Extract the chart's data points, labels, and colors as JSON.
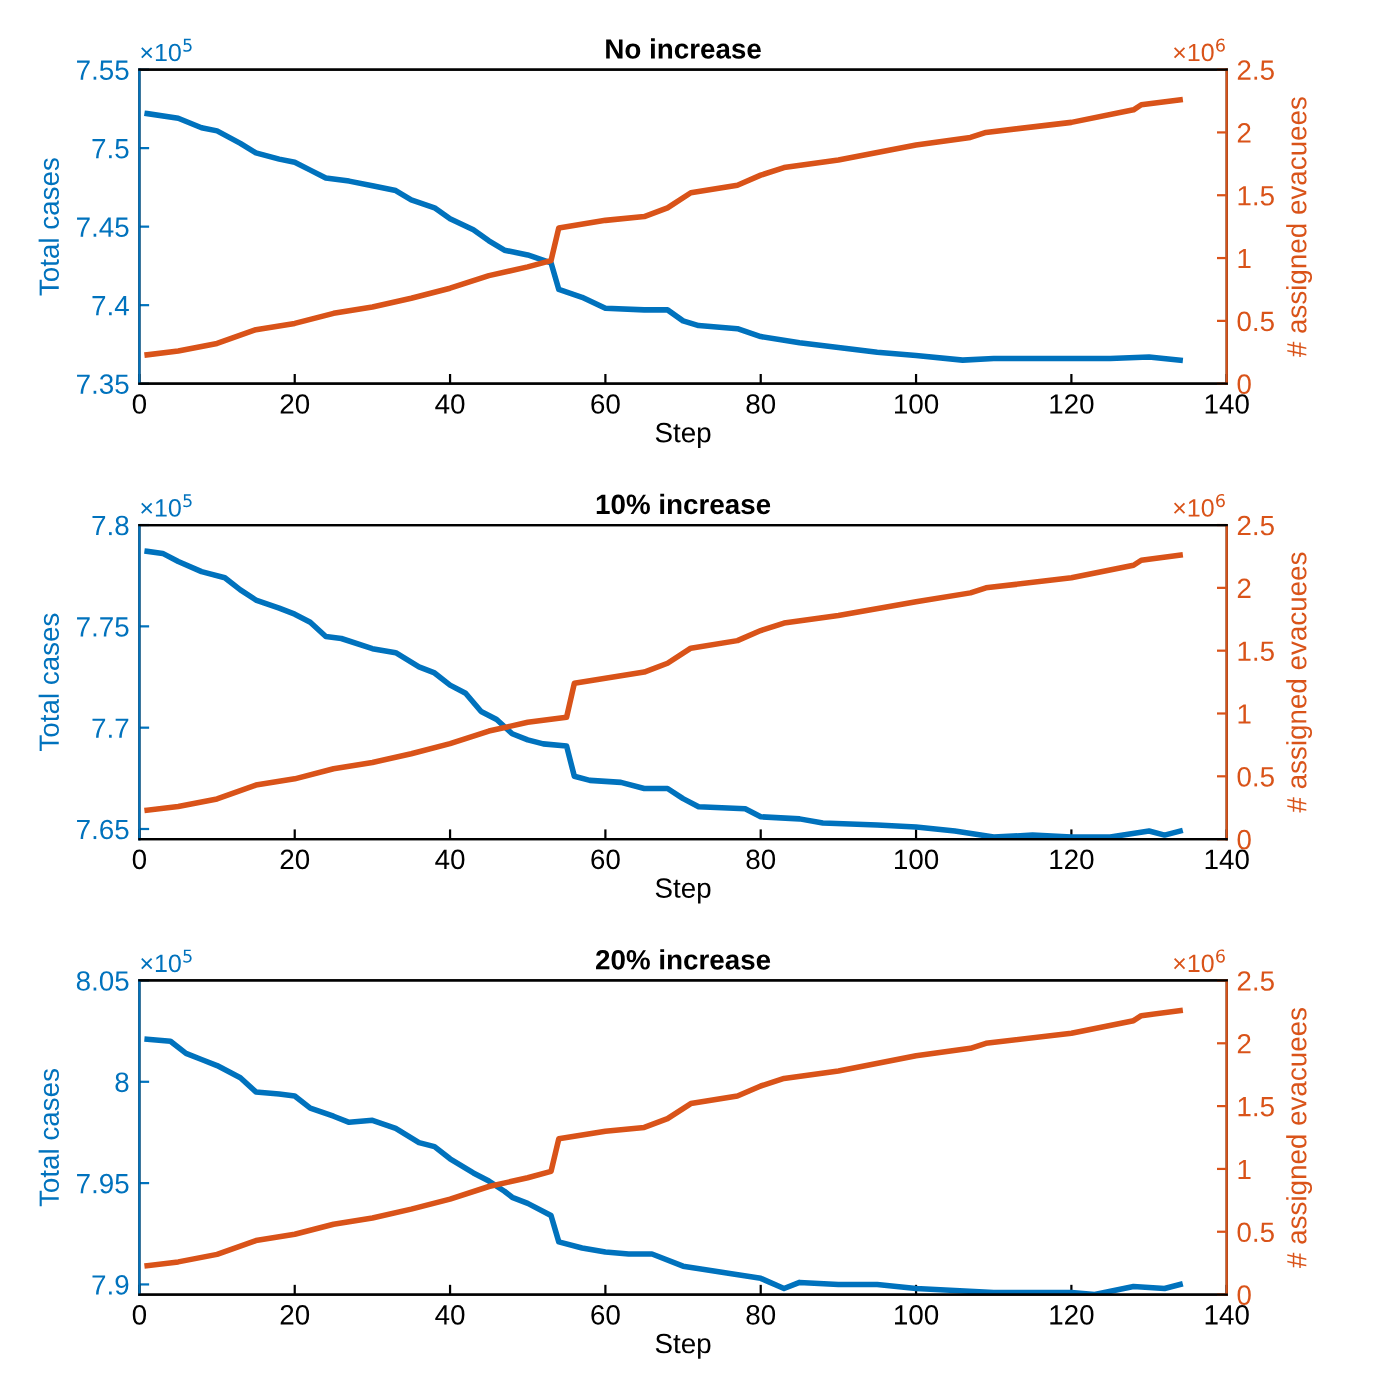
{
  "chart_data": [
    {
      "type": "line",
      "title": "No increase",
      "xlabel": "Step",
      "ylabel": "Total cases",
      "y2label": "# assigned evacuees",
      "annotations": [
        "×10$^{5}$",
        "×10$^{6}$"
      ],
      "xlim": [
        0,
        140
      ],
      "xticks": [
        0,
        20,
        40,
        60,
        80,
        100,
        120,
        140
      ],
      "ylim": [
        7.35,
        7.55
      ],
      "yticks": [
        7.35,
        7.4,
        7.45,
        7.5,
        7.55
      ],
      "y2lim": [
        0,
        2.5
      ],
      "y2ticks": [
        0,
        0.5,
        1,
        1.5,
        2,
        2.5
      ],
      "grid": false,
      "legend": false,
      "marker": "none",
      "line_style": "solid",
      "series": [
        {
          "color": "#0072bd",
          "x": [
            1,
            5,
            8,
            10,
            13,
            15,
            18,
            20,
            22,
            24,
            27,
            30,
            33,
            35,
            38,
            40,
            43,
            45,
            47,
            50,
            53,
            54,
            57,
            60,
            65,
            68,
            70,
            72,
            77,
            80,
            85,
            90,
            95,
            100,
            106,
            110,
            115,
            120,
            125,
            130,
            134
          ],
          "values": [
            7.522,
            7.519,
            7.513,
            7.511,
            7.503,
            7.497,
            7.493,
            7.491,
            7.486,
            7.481,
            7.479,
            7.476,
            7.473,
            7.467,
            7.462,
            7.455,
            7.448,
            7.441,
            7.435,
            7.432,
            7.427,
            7.41,
            7.405,
            7.398,
            7.397,
            7.397,
            7.39,
            7.387,
            7.385,
            7.38,
            7.376,
            7.373,
            7.37,
            7.368,
            7.365,
            7.366,
            7.366,
            7.366,
            7.366,
            7.367,
            7.365
          ]
        },
        {
          "color": "#d95319",
          "axis": "y2",
          "x": [
            1,
            5,
            10,
            15,
            20,
            25,
            30,
            35,
            40,
            45,
            50,
            53,
            54,
            60,
            65,
            68,
            71,
            77,
            80,
            83,
            90,
            100,
            107,
            109,
            120,
            128,
            129,
            134
          ],
          "values": [
            0.23,
            0.26,
            0.32,
            0.43,
            0.48,
            0.56,
            0.61,
            0.68,
            0.76,
            0.86,
            0.93,
            0.98,
            1.24,
            1.3,
            1.33,
            1.4,
            1.52,
            1.58,
            1.66,
            1.72,
            1.78,
            1.9,
            1.96,
            2.0,
            2.08,
            2.18,
            2.22,
            2.26
          ]
        }
      ]
    },
    {
      "type": "line",
      "title": "10% increase",
      "xlabel": "Step",
      "ylabel": "Total cases",
      "y2label": "# assigned evacuees",
      "annotations": [
        "×10$^{5}$",
        "×10$^{6}$"
      ],
      "xlim": [
        0,
        140
      ],
      "xticks": [
        0,
        20,
        40,
        60,
        80,
        100,
        120,
        140
      ],
      "ylim": [
        7.645,
        7.8
      ],
      "yticks": [
        7.65,
        7.7,
        7.75,
        7.8
      ],
      "y2lim": [
        0,
        2.5
      ],
      "y2ticks": [
        0,
        0.5,
        1,
        1.5,
        2,
        2.5
      ],
      "grid": false,
      "legend": false,
      "marker": "none",
      "line_style": "solid",
      "series": [
        {
          "color": "#0072bd",
          "x": [
            1,
            3,
            5,
            8,
            11,
            13,
            15,
            18,
            20,
            22,
            24,
            26,
            30,
            33,
            36,
            38,
            40,
            42,
            44,
            46,
            48,
            50,
            52,
            55,
            56,
            58,
            62,
            65,
            68,
            70,
            72,
            78,
            80,
            85,
            88,
            95,
            100,
            105,
            110,
            115,
            120,
            125,
            130,
            132,
            134
          ],
          "values": [
            7.787,
            7.786,
            7.782,
            7.777,
            7.774,
            7.768,
            7.763,
            7.759,
            7.756,
            7.752,
            7.745,
            7.744,
            7.739,
            7.737,
            7.73,
            7.727,
            7.721,
            7.717,
            7.708,
            7.704,
            7.697,
            7.694,
            7.692,
            7.691,
            7.676,
            7.674,
            7.673,
            7.67,
            7.67,
            7.665,
            7.661,
            7.66,
            7.656,
            7.655,
            7.653,
            7.652,
            7.651,
            7.649,
            7.646,
            7.647,
            7.646,
            7.646,
            7.649,
            7.647,
            7.649
          ]
        },
        {
          "color": "#d95319",
          "axis": "y2",
          "x": [
            1,
            5,
            10,
            15,
            20,
            25,
            30,
            35,
            40,
            45,
            50,
            55,
            56,
            60,
            65,
            68,
            71,
            77,
            80,
            83,
            90,
            100,
            107,
            109,
            120,
            128,
            129,
            134
          ],
          "values": [
            0.23,
            0.26,
            0.32,
            0.43,
            0.48,
            0.56,
            0.61,
            0.68,
            0.76,
            0.86,
            0.93,
            0.97,
            1.24,
            1.28,
            1.33,
            1.4,
            1.52,
            1.58,
            1.66,
            1.72,
            1.78,
            1.89,
            1.96,
            2.0,
            2.08,
            2.18,
            2.22,
            2.26
          ]
        }
      ]
    },
    {
      "type": "line",
      "title": "20% increase",
      "xlabel": "Step",
      "ylabel": "Total cases",
      "y2label": "# assigned evacuees",
      "annotations": [
        "×10$^{5}$",
        "×10$^{6}$"
      ],
      "xlim": [
        0,
        140
      ],
      "xticks": [
        0,
        20,
        40,
        60,
        80,
        100,
        120,
        140
      ],
      "ylim": [
        7.895,
        8.05
      ],
      "yticks": [
        7.9,
        7.95,
        8,
        8.05
      ],
      "y2lim": [
        0,
        2.5
      ],
      "y2ticks": [
        0,
        0.5,
        1,
        1.5,
        2,
        2.5
      ],
      "grid": false,
      "legend": false,
      "marker": "none",
      "line_style": "solid",
      "series": [
        {
          "color": "#0072bd",
          "x": [
            1,
            4,
            6,
            8,
            10,
            13,
            15,
            18,
            20,
            22,
            25,
            27,
            30,
            33,
            36,
            38,
            40,
            43,
            45,
            47,
            48,
            50,
            53,
            54,
            57,
            60,
            63,
            66,
            70,
            75,
            80,
            83,
            85,
            90,
            95,
            100,
            105,
            110,
            115,
            120,
            123,
            128,
            132,
            134
          ],
          "values": [
            8.021,
            8.02,
            8.014,
            8.011,
            8.008,
            8.002,
            7.995,
            7.994,
            7.993,
            7.987,
            7.983,
            7.98,
            7.981,
            7.977,
            7.97,
            7.968,
            7.962,
            7.955,
            7.951,
            7.946,
            7.943,
            7.94,
            7.934,
            7.921,
            7.918,
            7.916,
            7.915,
            7.915,
            7.909,
            7.906,
            7.903,
            7.898,
            7.901,
            7.9,
            7.9,
            7.898,
            7.897,
            7.896,
            7.896,
            7.896,
            7.895,
            7.899,
            7.898,
            7.9
          ]
        },
        {
          "color": "#d95319",
          "axis": "y2",
          "x": [
            1,
            5,
            10,
            15,
            20,
            25,
            30,
            35,
            40,
            45,
            50,
            53,
            54,
            60,
            65,
            68,
            71,
            77,
            80,
            83,
            90,
            100,
            107,
            109,
            120,
            128,
            129,
            134
          ],
          "values": [
            0.23,
            0.26,
            0.32,
            0.43,
            0.48,
            0.56,
            0.61,
            0.68,
            0.76,
            0.86,
            0.93,
            0.98,
            1.24,
            1.3,
            1.33,
            1.4,
            1.52,
            1.58,
            1.66,
            1.72,
            1.78,
            1.9,
            1.96,
            2.0,
            2.08,
            2.18,
            2.22,
            2.26
          ]
        }
      ]
    }
  ]
}
